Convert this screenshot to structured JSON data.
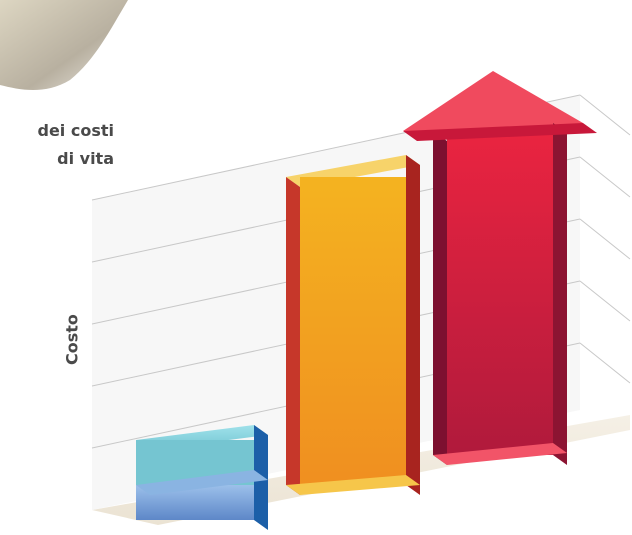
{
  "chart_data": {
    "type": "bar",
    "title_lines": [
      "dei costi",
      "di vita"
    ],
    "xlabel": "",
    "ylabel": "Costo",
    "categories": [
      "",
      "",
      ""
    ],
    "values": [
      1.0,
      3.85,
      4.8
    ],
    "ylim": [
      0,
      5
    ],
    "grid": true,
    "legend": "none",
    "bar_colors": [
      "#7fa7dd",
      "#f2a51f",
      "#e21f3f"
    ],
    "third_bar_shape": "arrow"
  }
}
